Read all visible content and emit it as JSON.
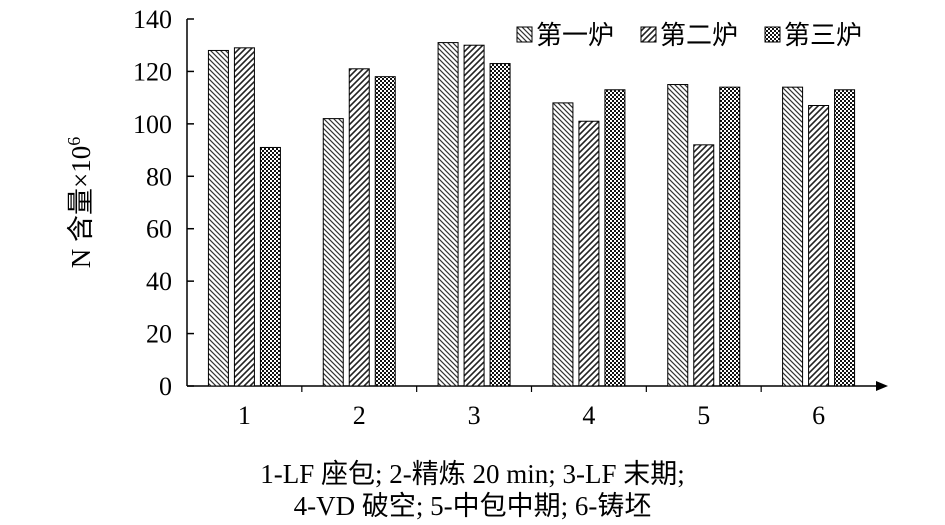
{
  "chart_data": {
    "type": "bar",
    "title": "",
    "xlabel": "",
    "ylabel": "N 含量×10",
    "ylabel_superscript": "6",
    "ylim": [
      0,
      140
    ],
    "yticks": [
      0,
      20,
      40,
      60,
      80,
      100,
      120,
      140
    ],
    "categories": [
      "1",
      "2",
      "3",
      "4",
      "5",
      "6"
    ],
    "series": [
      {
        "name": "第一炉",
        "values": [
          128,
          102,
          131,
          108,
          115,
          114
        ]
      },
      {
        "name": "第二炉",
        "values": [
          129,
          121,
          130,
          101,
          92,
          107
        ]
      },
      {
        "name": "第三炉",
        "values": [
          91,
          118,
          123,
          113,
          114,
          113
        ]
      }
    ],
    "legend_position": "top-right",
    "grid": false
  },
  "caption": {
    "line1": "1-LF 座包; 2-精炼 20 min; 3-LF 末期;",
    "line2": "4-VD 破空; 5-中包中期; 6-铸坯"
  }
}
